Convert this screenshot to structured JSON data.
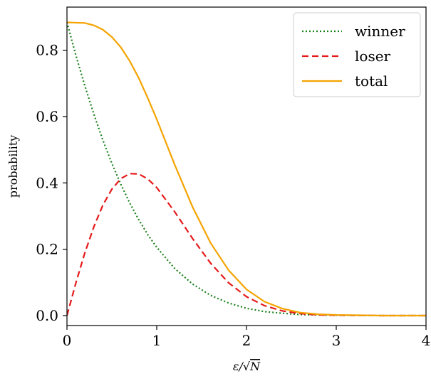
{
  "chart_data": {
    "type": "line",
    "xlabel": "ε/√N",
    "ylabel": "probability",
    "xlim": [
      0,
      4
    ],
    "ylim": [
      -0.03,
      0.93
    ],
    "xticks": [
      0,
      1,
      2,
      3,
      4
    ],
    "xtick_labels": [
      "0",
      "1",
      "2",
      "3",
      "4"
    ],
    "yticks": [
      0.0,
      0.2,
      0.4,
      0.6,
      0.8
    ],
    "ytick_labels": [
      "0.0",
      "0.2",
      "0.4",
      "0.6",
      "0.8"
    ],
    "grid": false,
    "legend_position": "top-right",
    "series": [
      {
        "name": "winner",
        "style": "dotted",
        "color": "#1a801a",
        "x": [
          0,
          0.1,
          0.2,
          0.3,
          0.4,
          0.5,
          0.6,
          0.7,
          0.8,
          0.9,
          1.0,
          1.2,
          1.4,
          1.6,
          1.8,
          2.0,
          2.2,
          2.4,
          2.6,
          2.8,
          3.0,
          3.5,
          4.0
        ],
        "y": [
          0.884,
          0.784,
          0.692,
          0.607,
          0.529,
          0.459,
          0.396,
          0.339,
          0.289,
          0.244,
          0.206,
          0.142,
          0.095,
          0.061,
          0.038,
          0.022,
          0.012,
          0.007,
          0.003,
          0.002,
          0.001,
          0.0,
          0.0
        ]
      },
      {
        "name": "loser",
        "style": "dashed",
        "color": "#e6191a",
        "x": [
          0,
          0.1,
          0.2,
          0.3,
          0.4,
          0.5,
          0.6,
          0.7,
          0.8,
          0.9,
          1.0,
          1.2,
          1.4,
          1.6,
          1.8,
          2.0,
          2.2,
          2.4,
          2.6,
          2.8,
          3.0,
          3.5,
          4.0
        ],
        "y": [
          0.0,
          0.099,
          0.19,
          0.268,
          0.333,
          0.381,
          0.413,
          0.428,
          0.427,
          0.412,
          0.386,
          0.313,
          0.232,
          0.158,
          0.099,
          0.057,
          0.03,
          0.014,
          0.006,
          0.002,
          0.001,
          0.0,
          0.0
        ]
      },
      {
        "name": "total",
        "style": "solid",
        "color": "#f5a300",
        "x": [
          0,
          0.1,
          0.2,
          0.3,
          0.4,
          0.5,
          0.6,
          0.7,
          0.8,
          0.9,
          1.0,
          1.2,
          1.4,
          1.6,
          1.8,
          2.0,
          2.2,
          2.4,
          2.6,
          2.8,
          3.0,
          3.5,
          4.0
        ],
        "y": [
          0.884,
          0.883,
          0.882,
          0.875,
          0.862,
          0.84,
          0.809,
          0.767,
          0.716,
          0.656,
          0.592,
          0.455,
          0.327,
          0.219,
          0.137,
          0.079,
          0.042,
          0.021,
          0.009,
          0.004,
          0.002,
          0.0,
          0.0
        ]
      }
    ]
  }
}
